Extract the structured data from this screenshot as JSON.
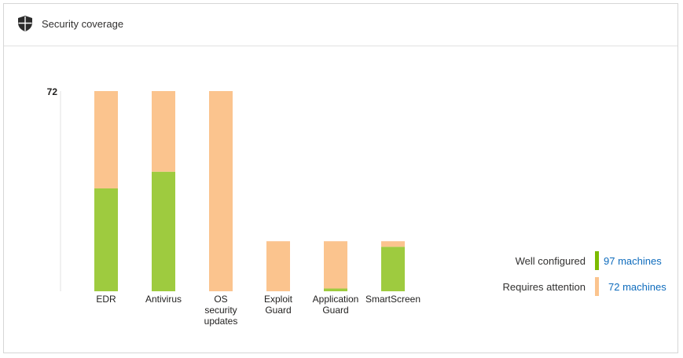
{
  "header": {
    "title": "Security coverage",
    "icon": "shield-icon"
  },
  "colors": {
    "well_configured": "#9ecb3f",
    "requires_attention": "#fbc48e",
    "link": "#0f6cbd"
  },
  "legend": {
    "items": [
      {
        "label": "Well configured",
        "value": "97 machines",
        "color": "#7cbb00"
      },
      {
        "label": "Requires attention",
        "value": "72 machines",
        "color": "#fbc48e"
      }
    ]
  },
  "chart_data": {
    "type": "bar",
    "stacked": true,
    "ylim": [
      0,
      72
    ],
    "y_ticks": [
      "72"
    ],
    "categories": [
      [
        "EDR"
      ],
      [
        "Antivirus"
      ],
      [
        "OS",
        "security",
        "updates"
      ],
      [
        "Exploit",
        "Guard"
      ],
      [
        "Application",
        "Guard"
      ],
      [
        "SmartScreen"
      ]
    ],
    "series": [
      {
        "name": "Well configured",
        "values": [
          37,
          43,
          0,
          0,
          1,
          16
        ]
      },
      {
        "name": "Requires attention",
        "values": [
          35,
          29,
          72,
          18,
          17,
          2
        ]
      }
    ]
  }
}
